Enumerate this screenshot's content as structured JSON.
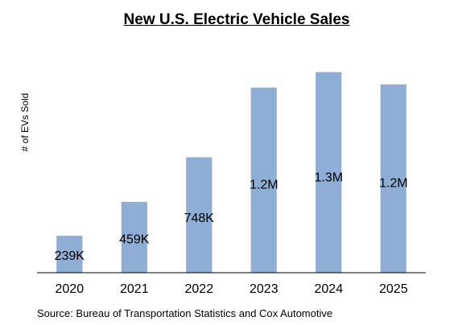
{
  "chart_data": {
    "type": "bar",
    "title": "New U.S. Electric Vehicle Sales",
    "xlabel": "",
    "ylabel": "# of EVs Sold",
    "source": "Source: Bureau of Transportation Statistics and Cox Automotive",
    "categories": [
      "2020",
      "2021",
      "2022",
      "2023",
      "2024",
      "2025"
    ],
    "values": [
      239000,
      459000,
      748000,
      1200000,
      1300000,
      1220000
    ],
    "data_labels": [
      "239K",
      "459K",
      "748K",
      "1.2M",
      "1.3M",
      "1.2M"
    ],
    "ylim": [
      0,
      1350000
    ],
    "grid": false,
    "legend": false,
    "bar_color": "#8eaed6"
  }
}
